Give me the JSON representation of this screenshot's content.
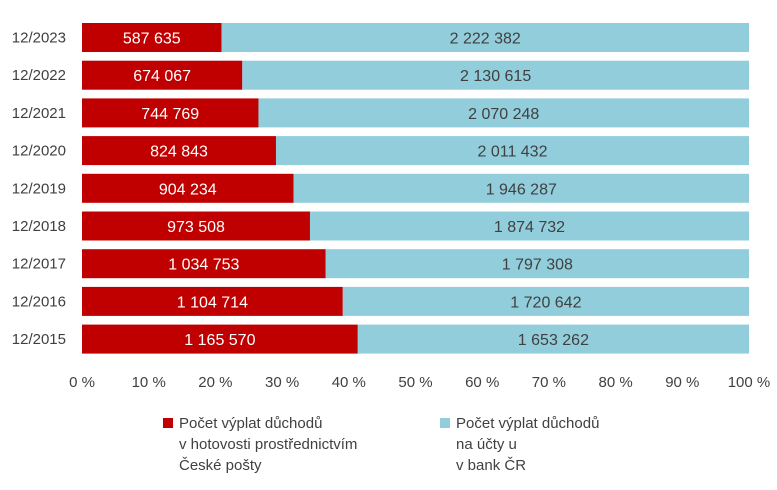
{
  "chart_data": {
    "type": "bar",
    "orientation": "horizontal",
    "stacked": "percent",
    "categories": [
      "12/2023",
      "12/2022",
      "12/2021",
      "12/2020",
      "12/2019",
      "12/2018",
      "12/2017",
      "12/2016",
      "12/2015"
    ],
    "series": [
      {
        "name": "Počet výplat důchodů\nv hotovosti prostřednictvím\nČeské pošty",
        "color": "#c00000",
        "label_color": "#ffffff",
        "values": [
          587635,
          674067,
          744769,
          824843,
          904234,
          973508,
          1034753,
          1104714,
          1165570
        ],
        "labels": [
          "587 635",
          "674 067",
          "744 769",
          "824 843",
          "904 234",
          "973 508",
          "1 034 753",
          "1 104 714",
          "1 165 570"
        ]
      },
      {
        "name": "Počet výplat důchodů\nna účty u\nv bank ČR",
        "color": "#92cddc",
        "label_color": "#404040",
        "values": [
          2222382,
          2130615,
          2070248,
          2011432,
          1946287,
          1874732,
          1797308,
          1720642,
          1653262
        ],
        "labels": [
          "2 222 382",
          "2 130 615",
          "2 070 248",
          "2 011 432",
          "1 946 287",
          "1 874 732",
          "1 797 308",
          "1 720 642",
          "1 653 262"
        ]
      }
    ],
    "xlim": [
      0,
      100
    ],
    "x_ticks": [
      "0 %",
      "10 %",
      "20 %",
      "30 %",
      "40 %",
      "50 %",
      "60 %",
      "70 %",
      "80 %",
      "90 %",
      "100 %"
    ],
    "grid": false,
    "legend": "bottom"
  }
}
